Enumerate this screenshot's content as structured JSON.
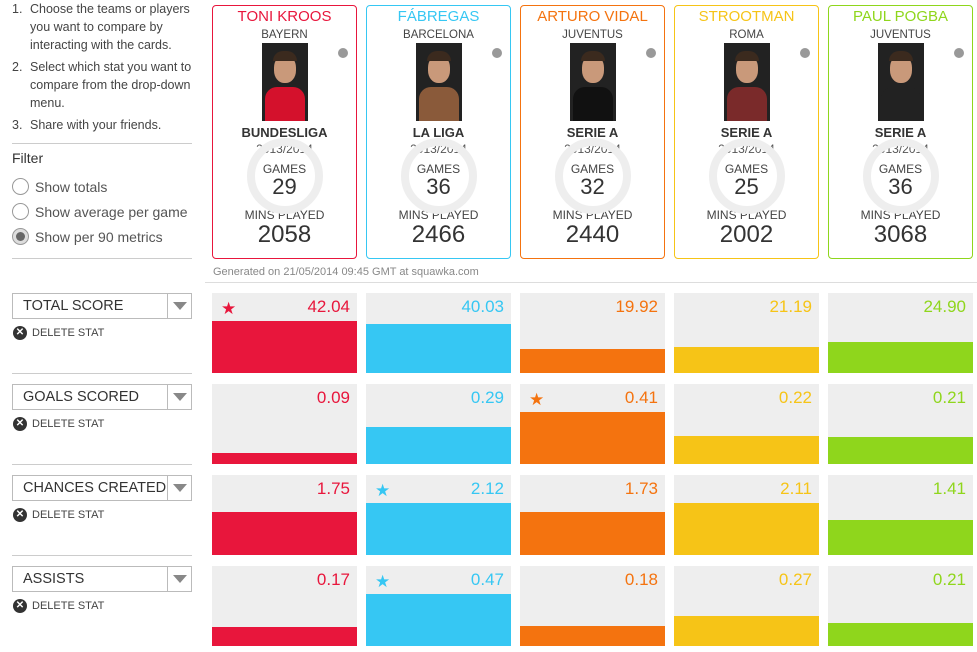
{
  "instructions": [
    {
      "num": "1.",
      "text": "Choose the teams or players you want to compare by interacting with the cards."
    },
    {
      "num": "2.",
      "text": "Select which stat you want to compare from the drop-down menu."
    },
    {
      "num": "3.",
      "text": "Share with your friends."
    }
  ],
  "filter": {
    "title": "Filter",
    "options": [
      "Show totals",
      "Show average per game",
      "Show per 90 metrics"
    ],
    "selected": 2
  },
  "labels": {
    "games": "GAMES",
    "mins": "MINS PLAYED"
  },
  "players": [
    {
      "name": "TONI KROOS",
      "team": "BAYERN",
      "league": "BUNDESLIGA",
      "season": "2013/2014",
      "games": "29",
      "mins": "2058",
      "color": "#e8163c",
      "kit": "#d4112c",
      "icon": "club-badge-icon"
    },
    {
      "name": "FÁBREGAS",
      "team": "BARCELONA",
      "league": "LA LIGA",
      "season": "2013/2014",
      "games": "36",
      "mins": "2466",
      "color": "#36c7f3",
      "kit": "#8a5a3a",
      "icon": "club-badge-icon"
    },
    {
      "name": "ARTURO VIDAL",
      "team": "JUVENTUS",
      "league": "SERIE A",
      "season": "2013/2014",
      "games": "32",
      "mins": "2440",
      "color": "#f4730f",
      "kit": "#111111",
      "icon": "club-badge-icon"
    },
    {
      "name": "STROOTMAN",
      "team": "ROMA",
      "league": "SERIE A",
      "season": "2013/2014",
      "games": "25",
      "mins": "2002",
      "color": "#f6c417",
      "kit": "#7a2a2a",
      "icon": "club-badge-icon"
    },
    {
      "name": "PAUL POGBA",
      "team": "JUVENTUS",
      "league": "SERIE A",
      "season": "2013/2014",
      "games": "36",
      "mins": "3068",
      "color": "#8fd61c",
      "kit": "#222222",
      "icon": "club-badge-icon"
    }
  ],
  "generated": "Generated on 21/05/2014 09:45 GMT at squawka.com",
  "delete_label": "DELETE STAT",
  "stats": [
    {
      "label": "TOTAL SCORE",
      "values": [
        "42.04",
        "40.03",
        "19.92",
        "21.19",
        "24.90"
      ],
      "fill": [
        1.0,
        0.95,
        0.47,
        0.5,
        0.59
      ],
      "star": 0
    },
    {
      "label": "GOALS SCORED",
      "values": [
        "0.09",
        "0.29",
        "0.41",
        "0.22",
        "0.21"
      ],
      "fill": [
        0.22,
        0.71,
        1.0,
        0.54,
        0.51
      ],
      "star": 2
    },
    {
      "label": "CHANCES CREATED",
      "values": [
        "1.75",
        "2.12",
        "1.73",
        "2.11",
        "1.41"
      ],
      "fill": [
        0.83,
        1.0,
        0.82,
        1.0,
        0.67
      ],
      "star": 1
    },
    {
      "label": "ASSISTS",
      "values": [
        "0.17",
        "0.47",
        "0.18",
        "0.27",
        "0.21"
      ],
      "fill": [
        0.36,
        1.0,
        0.38,
        0.57,
        0.45
      ],
      "star": 1
    }
  ]
}
